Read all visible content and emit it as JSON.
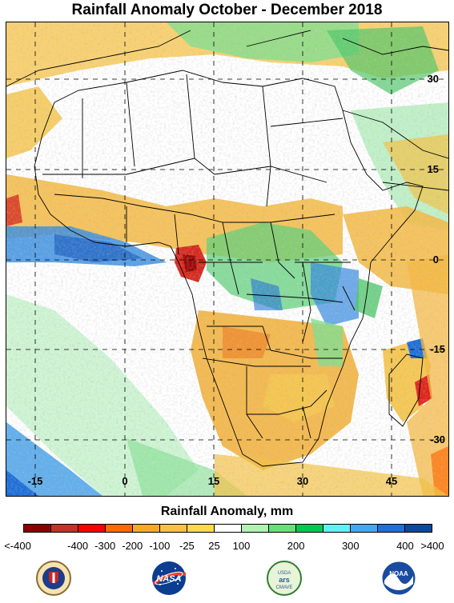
{
  "title": "Rainfall Anomaly October - December 2018",
  "map": {
    "lon_labels": [
      "-15",
      "0",
      "15",
      "30",
      "45"
    ],
    "lat_labels": [
      "30",
      "15",
      "0",
      "-15",
      "-30"
    ]
  },
  "legend": {
    "title": "Rainfall Anomaly, mm",
    "colors": [
      "#8b0000",
      "#c4302b",
      "#ff0000",
      "#ff6a00",
      "#f9a825",
      "#f5c242",
      "#ffd84d",
      "#ffffff",
      "#b2f2b2",
      "#66e07a",
      "#00c853",
      "#5ef2f2",
      "#40a9f5",
      "#1e6fd9",
      "#0d47a1"
    ],
    "labels": [
      "<-400",
      "-400",
      "-300",
      "-200",
      "-100",
      "-25",
      "25",
      "100",
      "200",
      "300",
      "400",
      ">400"
    ]
  },
  "logos": [
    {
      "name": "Defense Health Agency",
      "icon": "dha-seal-icon"
    },
    {
      "name": "NASA",
      "icon": "nasa-meatball-icon"
    },
    {
      "name": "USDA CMAVE",
      "icon": "usda-cmave-icon",
      "text_top": "USDA",
      "text_bottom": "CMAVE"
    },
    {
      "name": "NOAA",
      "icon": "noaa-icon",
      "text": "NOAA"
    }
  ]
}
